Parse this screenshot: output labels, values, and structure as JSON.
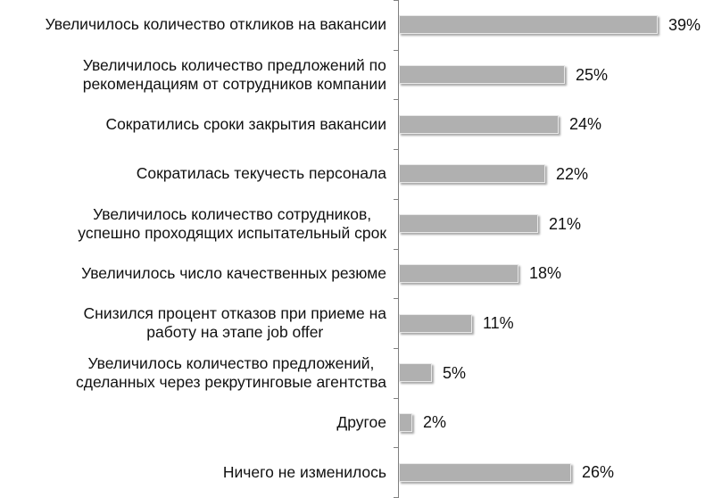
{
  "chart_data": {
    "type": "bar",
    "orientation": "horizontal",
    "title": "",
    "xlabel": "",
    "ylabel": "",
    "xlim": [
      0,
      40
    ],
    "grid": false,
    "legend": null,
    "bar_color": "#b0b0b0",
    "axis_color": "#808080",
    "categories": [
      "Увеличилось количество откликов на вакансии",
      "Увеличилось количество предложений по\nрекомендациям от сотрудников компании",
      "Сократились сроки закрытия вакансии",
      "Сократилась текучесть персонала",
      "Увеличилось количество сотрудников,\nуспешно проходящих испытательный срок",
      "Увеличилось число качественных резюме",
      "Снизился процент отказов при приеме на\nработу на этапе job offer",
      "Увеличилось количество предложений,\nсделанных через рекрутинговые агентства",
      "Другое",
      "Ничего не изменилось"
    ],
    "values": [
      39,
      25,
      24,
      22,
      21,
      18,
      11,
      5,
      2,
      26
    ],
    "value_labels": [
      "39%",
      "25%",
      "24%",
      "22%",
      "21%",
      "18%",
      "11%",
      "5%",
      "2%",
      "26%"
    ]
  }
}
